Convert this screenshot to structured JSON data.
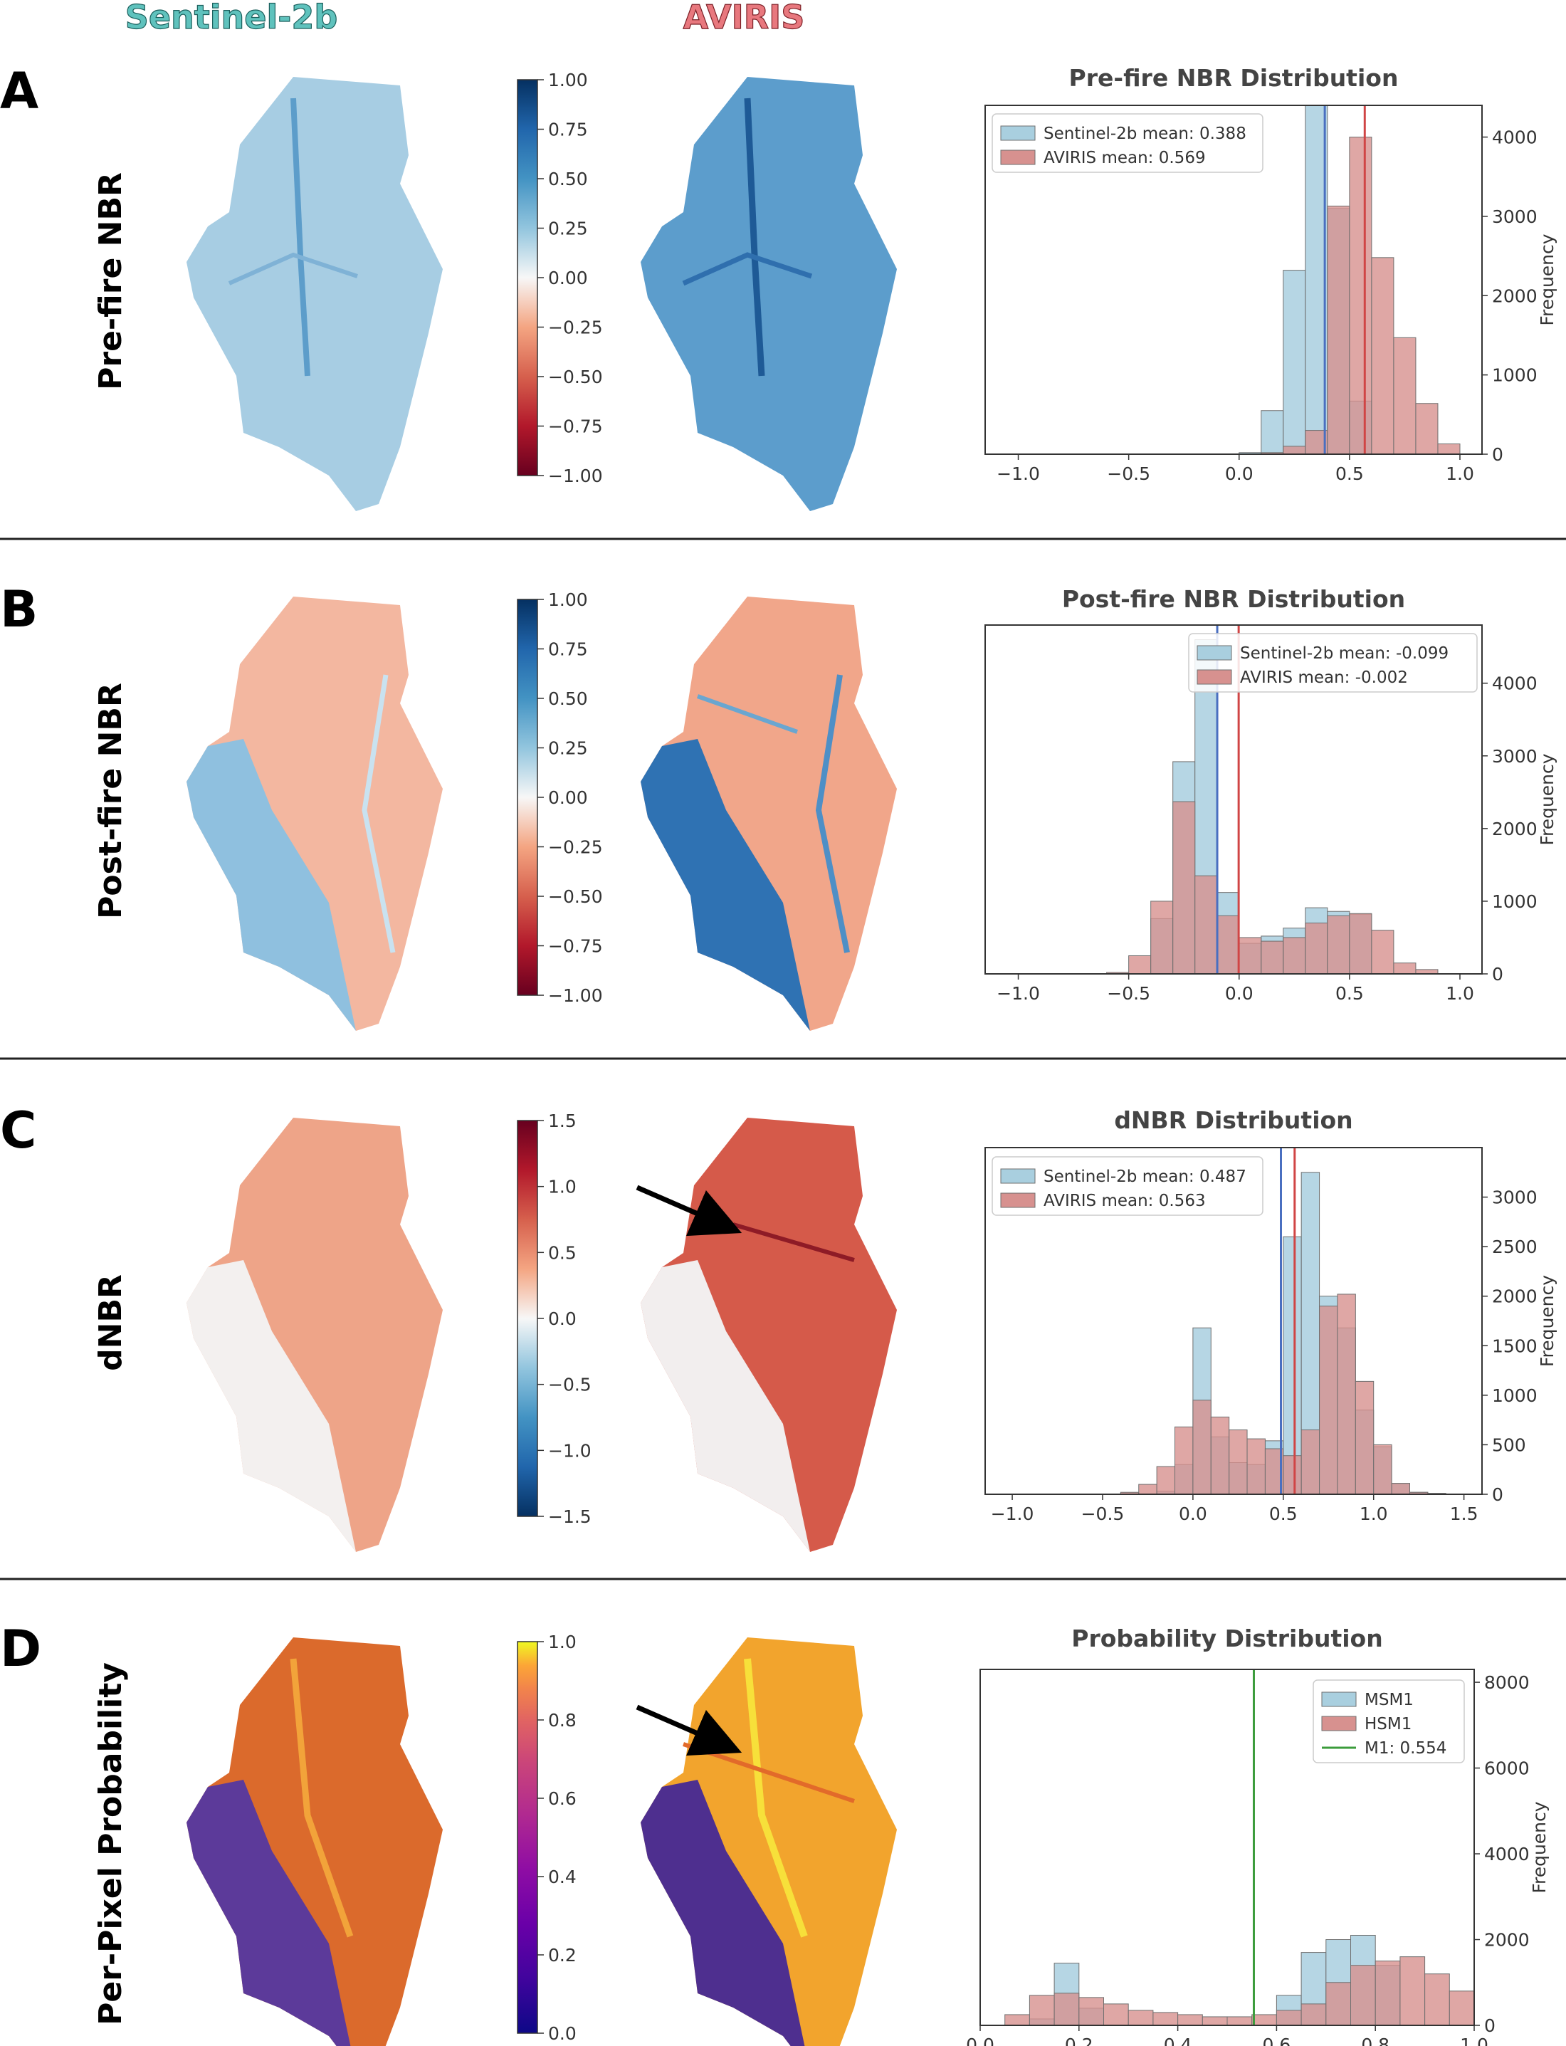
{
  "column_titles": [
    {
      "text": "Sentinel-2b",
      "color": "#5fc2bd"
    },
    {
      "text": "AVIRIS",
      "color": "#e8787e"
    }
  ],
  "colors": {
    "sentinel": "#a9cfdf",
    "aviris": "#d7918f",
    "sentinel_line": "#4a6fc0",
    "aviris_line": "#d04545",
    "m1_line": "#3c9c3c"
  },
  "rows": [
    {
      "letter": "A",
      "label": "Pre-fire NBR",
      "colorbar_cmap": "RdBu",
      "colorbar_ticks": [
        "1.00",
        "0.75",
        "0.50",
        "0.25",
        "0.00",
        "−0.25",
        "−0.50",
        "−0.75",
        "−1.00"
      ]
    },
    {
      "letter": "B",
      "label": "Post-fire NBR",
      "colorbar_cmap": "RdBu",
      "colorbar_ticks": [
        "1.00",
        "0.75",
        "0.50",
        "0.25",
        "0.00",
        "−0.25",
        "−0.50",
        "−0.75",
        "−1.00"
      ]
    },
    {
      "letter": "C",
      "label": "dNBR",
      "colorbar_cmap": "RdBu_r",
      "colorbar_ticks": [
        "1.5",
        "1.0",
        "0.5",
        "0.0",
        "−0.5",
        "−1.0",
        "−1.5"
      ]
    },
    {
      "letter": "D",
      "label": "Per-Pixel Probability",
      "colorbar_cmap": "plasma",
      "colorbar_ticks": [
        "1.0",
        "0.8",
        "0.6",
        "0.4",
        "0.2",
        "0.0"
      ]
    }
  ],
  "chart_data": [
    {
      "type": "bar",
      "title": "Pre-fire NBR Distribution",
      "ylabel": "Frequency",
      "xlim": [
        -1.15,
        1.1
      ],
      "ylim": [
        0,
        4400
      ],
      "xticks": [
        -1.0,
        -0.5,
        0.0,
        0.5,
        1.0
      ],
      "xtick_labels": [
        "−1.0",
        "−0.5",
        "0.0",
        "0.5",
        "1.0"
      ],
      "yticks": [
        0,
        1000,
        2000,
        3000,
        4000
      ],
      "bin_edges": [
        0.0,
        0.1,
        0.2,
        0.3,
        0.4,
        0.5,
        0.6,
        0.7,
        0.8,
        0.9,
        1.0
      ],
      "series": [
        {
          "name": "Sentinel-2b mean:  0.388",
          "values": [
            20,
            550,
            2320,
            4400,
            3100,
            670,
            0,
            0,
            0,
            0
          ],
          "mean": 0.388
        },
        {
          "name": "AVIRIS mean:  0.569",
          "values": [
            0,
            20,
            100,
            300,
            3130,
            4000,
            2480,
            1470,
            640,
            130
          ],
          "mean": 0.569
        }
      ],
      "legend_position": "upper-left"
    },
    {
      "type": "bar",
      "title": "Post-fire NBR Distribution",
      "ylabel": "Frequency",
      "xlim": [
        -1.15,
        1.1
      ],
      "ylim": [
        0,
        4800
      ],
      "xticks": [
        -1.0,
        -0.5,
        0.0,
        0.5,
        1.0
      ],
      "xtick_labels": [
        "−1.0",
        "−0.5",
        "0.0",
        "0.5",
        "1.0"
      ],
      "yticks": [
        0,
        1000,
        2000,
        3000,
        4000
      ],
      "bin_edges": [
        -0.6,
        -0.5,
        -0.4,
        -0.3,
        -0.2,
        -0.1,
        0.0,
        0.1,
        0.2,
        0.3,
        0.4,
        0.5,
        0.6,
        0.7,
        0.8,
        0.9
      ],
      "series": [
        {
          "name": "Sentinel-2b mean: -0.099",
          "values": [
            0,
            0,
            760,
            2920,
            4600,
            1120,
            420,
            520,
            630,
            910,
            860,
            820,
            0,
            0,
            0
          ],
          "mean": -0.099
        },
        {
          "name": "AVIRIS mean: -0.002",
          "values": [
            20,
            250,
            1000,
            2370,
            1350,
            800,
            500,
            450,
            500,
            700,
            800,
            830,
            600,
            150,
            60
          ],
          "mean": -0.002
        }
      ],
      "legend_position": "upper-right"
    },
    {
      "type": "bar",
      "title": "dNBR Distribution",
      "ylabel": "Frequency",
      "xlim": [
        -1.15,
        1.6
      ],
      "ylim": [
        0,
        3500
      ],
      "xticks": [
        -1.0,
        -0.5,
        0.0,
        0.5,
        1.0,
        1.5
      ],
      "xtick_labels": [
        "−1.0",
        "−0.5",
        "0.0",
        "0.5",
        "1.0",
        "1.5"
      ],
      "yticks": [
        0,
        500,
        1000,
        1500,
        2000,
        2500,
        3000
      ],
      "bin_edges": [
        -0.4,
        -0.3,
        -0.2,
        -0.1,
        0.0,
        0.1,
        0.2,
        0.3,
        0.4,
        0.5,
        0.6,
        0.7,
        0.8,
        0.9,
        1.0,
        1.1,
        1.2,
        1.3,
        1.4,
        1.5
      ],
      "series": [
        {
          "name": "Sentinel-2b mean:  0.487",
          "values": [
            0,
            0,
            30,
            300,
            1680,
            580,
            320,
            300,
            540,
            2600,
            3250,
            2000,
            1680,
            850,
            480,
            110,
            20,
            0,
            0
          ],
          "mean": 0.487
        },
        {
          "name": "AVIRIS mean:  0.563",
          "values": [
            20,
            100,
            280,
            680,
            950,
            780,
            650,
            560,
            460,
            390,
            650,
            1900,
            2020,
            1140,
            500,
            110,
            20,
            10,
            0
          ],
          "mean": 0.563
        }
      ],
      "legend_position": "upper-left"
    },
    {
      "type": "bar",
      "title": "Probability Distribution",
      "ylabel": "Frequency",
      "xlim": [
        0.0,
        1.0
      ],
      "ylim": [
        0,
        8300
      ],
      "xticks": [
        0.0,
        0.2,
        0.4,
        0.6,
        0.8,
        1.0
      ],
      "xtick_labels": [
        "0.0",
        "0.2",
        "0.4",
        "0.6",
        "0.8",
        "1.0"
      ],
      "yticks": [
        0,
        2000,
        4000,
        6000,
        8000
      ],
      "bin_edges": [
        0.05,
        0.1,
        0.15,
        0.2,
        0.25,
        0.3,
        0.35,
        0.4,
        0.45,
        0.5,
        0.55,
        0.6,
        0.65,
        0.7,
        0.75,
        0.8,
        0.85,
        0.9,
        0.95,
        1.0
      ],
      "series": [
        {
          "name": "MSM1",
          "values": [
            0,
            150,
            1450,
            400,
            0,
            0,
            0,
            0,
            0,
            0,
            0,
            700,
            1700,
            2000,
            2100,
            1400,
            0,
            0,
            0
          ],
          "mean": null
        },
        {
          "name": "HSM1",
          "values": [
            250,
            700,
            750,
            650,
            500,
            350,
            300,
            250,
            200,
            200,
            250,
            350,
            500,
            1000,
            1400,
            1500,
            1600,
            1200,
            800
          ],
          "mean": null
        }
      ],
      "vline": {
        "name": "M1:  0.554",
        "value": 0.554
      },
      "legend_position": "upper-right"
    }
  ]
}
